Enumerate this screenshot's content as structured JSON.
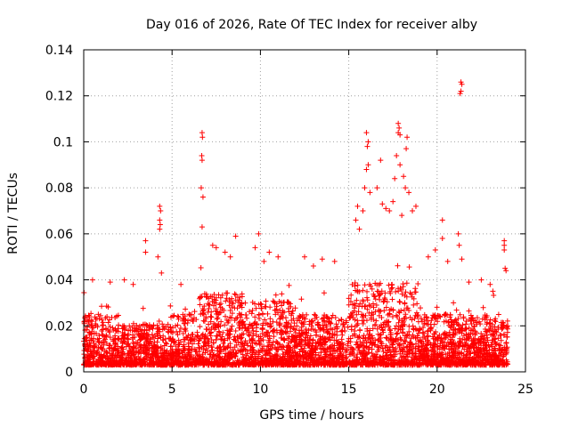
{
  "chart_data": {
    "type": "scatter",
    "title": "Day 016 of 2026, Rate Of TEC Index for receiver alby",
    "xlabel": "GPS time / hours",
    "ylabel": "ROTI / TECUs",
    "xlim": [
      0,
      25
    ],
    "ylim": [
      0,
      0.14
    ],
    "x_ticks": [
      0,
      5,
      10,
      15,
      20,
      25
    ],
    "x_tick_labels": [
      "0",
      "5",
      "10",
      "15",
      "20",
      "25"
    ],
    "y_ticks": [
      0,
      0.02,
      0.04,
      0.06,
      0.08,
      0.1,
      0.12,
      0.14
    ],
    "y_tick_labels": [
      "0",
      "0.02",
      "0.04",
      "0.06",
      "0.08",
      "0.1",
      "0.12",
      "0.14"
    ],
    "grid": true,
    "marker": "plus",
    "color": "#ff0000",
    "series": [
      {
        "points": [
          [
            4.3,
            0.072
          ],
          [
            4.35,
            0.07
          ],
          [
            4.3,
            0.066
          ],
          [
            4.33,
            0.064
          ],
          [
            4.3,
            0.062
          ],
          [
            3.5,
            0.057
          ],
          [
            3.5,
            0.052
          ],
          [
            4.4,
            0.043
          ],
          [
            4.2,
            0.05
          ],
          [
            6.7,
            0.104
          ],
          [
            6.72,
            0.102
          ],
          [
            6.68,
            0.094
          ],
          [
            6.7,
            0.092
          ],
          [
            6.65,
            0.08
          ],
          [
            6.75,
            0.076
          ],
          [
            6.7,
            0.063
          ],
          [
            7.3,
            0.055
          ],
          [
            7.5,
            0.054
          ],
          [
            8.0,
            0.052
          ],
          [
            8.6,
            0.059
          ],
          [
            8.3,
            0.05
          ],
          [
            9.9,
            0.06
          ],
          [
            9.7,
            0.054
          ],
          [
            10.5,
            0.052
          ],
          [
            11.0,
            0.05
          ],
          [
            10.2,
            0.048
          ],
          [
            12.5,
            0.05
          ],
          [
            13.5,
            0.049
          ],
          [
            14.2,
            0.048
          ],
          [
            13.0,
            0.046
          ],
          [
            16.0,
            0.104
          ],
          [
            16.1,
            0.1
          ],
          [
            16.05,
            0.098
          ],
          [
            16.1,
            0.09
          ],
          [
            16.0,
            0.088
          ],
          [
            15.9,
            0.08
          ],
          [
            16.2,
            0.078
          ],
          [
            15.5,
            0.072
          ],
          [
            15.4,
            0.066
          ],
          [
            15.6,
            0.062
          ],
          [
            15.8,
            0.07
          ],
          [
            16.8,
            0.092
          ],
          [
            16.6,
            0.08
          ],
          [
            16.9,
            0.073
          ],
          [
            17.1,
            0.071
          ],
          [
            17.3,
            0.07
          ],
          [
            17.5,
            0.074
          ],
          [
            17.8,
            0.108
          ],
          [
            17.85,
            0.106
          ],
          [
            17.8,
            0.104
          ],
          [
            17.9,
            0.103
          ],
          [
            18.3,
            0.102
          ],
          [
            18.25,
            0.097
          ],
          [
            17.7,
            0.094
          ],
          [
            17.9,
            0.09
          ],
          [
            18.1,
            0.085
          ],
          [
            18.2,
            0.08
          ],
          [
            17.6,
            0.084
          ],
          [
            18.4,
            0.078
          ],
          [
            18.8,
            0.072
          ],
          [
            18.6,
            0.07
          ],
          [
            18.0,
            0.068
          ],
          [
            20.3,
            0.066
          ],
          [
            20.3,
            0.058
          ],
          [
            19.5,
            0.05
          ],
          [
            19.9,
            0.053
          ],
          [
            20.6,
            0.048
          ],
          [
            21.35,
            0.126
          ],
          [
            21.4,
            0.125
          ],
          [
            21.35,
            0.122
          ],
          [
            21.3,
            0.121
          ],
          [
            21.2,
            0.06
          ],
          [
            21.25,
            0.055
          ],
          [
            21.4,
            0.049
          ],
          [
            23.8,
            0.057
          ],
          [
            23.8,
            0.055
          ],
          [
            23.8,
            0.053
          ],
          [
            23.85,
            0.045
          ],
          [
            23.9,
            0.044
          ],
          [
            0.5,
            0.04
          ],
          [
            1.5,
            0.039
          ],
          [
            2.3,
            0.04
          ],
          [
            2.8,
            0.038
          ],
          [
            5.5,
            0.038
          ],
          [
            22.5,
            0.04
          ],
          [
            23.0,
            0.038
          ],
          [
            21.8,
            0.039
          ]
        ]
      }
    ]
  }
}
